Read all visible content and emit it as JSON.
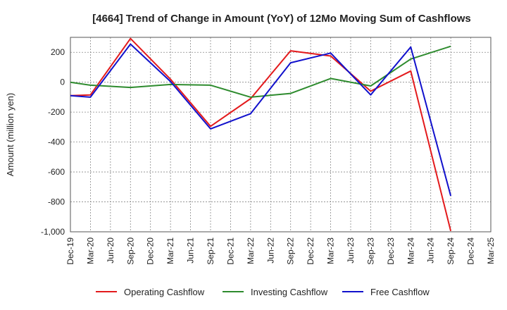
{
  "chart_data": {
    "type": "line",
    "title": "[4664]  Trend of Change in Amount (YoY) of 12Mo Moving Sum of Cashflows",
    "xlabel": "",
    "ylabel": "Amount (million yen)",
    "ylim": [
      -1000,
      300
    ],
    "yticks": [
      200,
      0,
      -200,
      -400,
      -600,
      -800,
      -1000
    ],
    "ytick_labels": [
      "200",
      "0",
      "-200",
      "-400",
      "-600",
      "-800",
      "-1,000"
    ],
    "grid": true,
    "legend_position": "bottom",
    "categories": [
      "Dec-19",
      "Mar-20",
      "Jun-20",
      "Sep-20",
      "Dec-20",
      "Mar-21",
      "Jun-21",
      "Sep-21",
      "Dec-21",
      "Mar-22",
      "Jun-22",
      "Sep-22",
      "Dec-22",
      "Mar-23",
      "Jun-23",
      "Sep-23",
      "Dec-23",
      "Mar-24",
      "Jun-24",
      "Sep-24",
      "Dec-24",
      "Mar-25"
    ],
    "series": [
      {
        "name": "Operating Cashflow",
        "color": "#e31a1c",
        "values": [
          -90,
          -85,
          null,
          292,
          null,
          20,
          null,
          -295,
          null,
          -110,
          null,
          210,
          null,
          175,
          null,
          -60,
          null,
          75,
          null,
          -995,
          null,
          null
        ]
      },
      {
        "name": "Investing Cashflow",
        "color": "#2e8b2e",
        "values": [
          0,
          -20,
          null,
          -35,
          null,
          -15,
          null,
          -20,
          null,
          -100,
          null,
          -75,
          null,
          25,
          null,
          -25,
          null,
          155,
          null,
          240,
          null,
          null
        ]
      },
      {
        "name": "Free Cashflow",
        "color": "#1111cc",
        "values": [
          -90,
          -100,
          null,
          255,
          null,
          5,
          null,
          -312,
          null,
          -210,
          null,
          130,
          null,
          195,
          null,
          -85,
          null,
          235,
          null,
          -760,
          null,
          null
        ]
      }
    ]
  }
}
